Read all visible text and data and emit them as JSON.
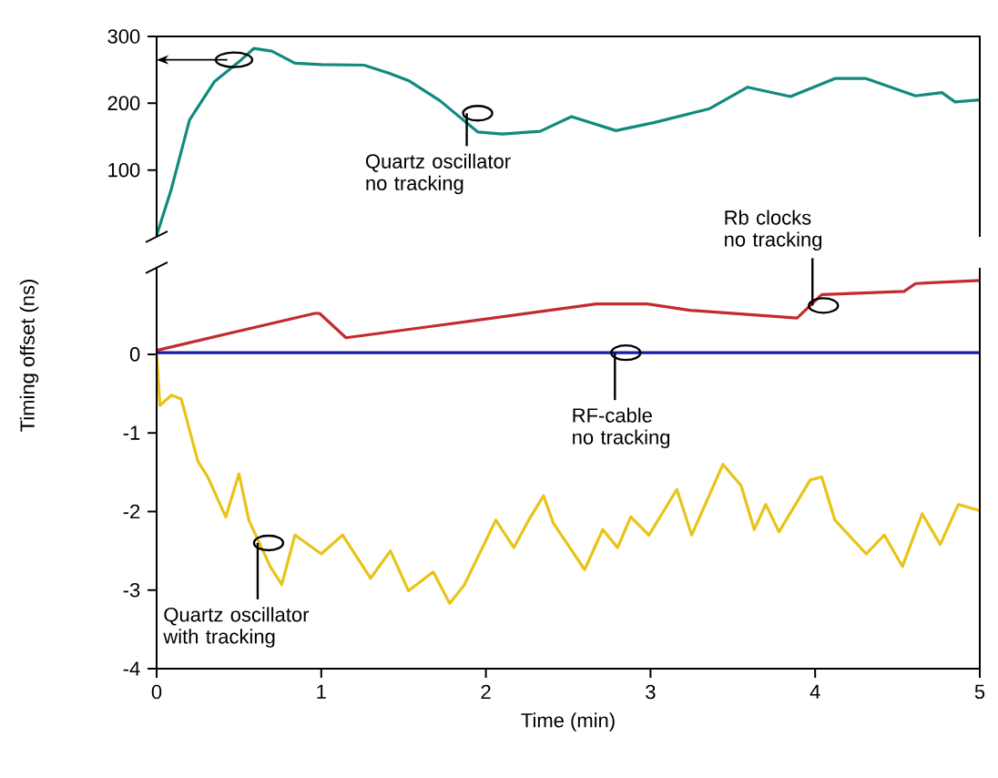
{
  "chart_data": [
    {
      "type": "line",
      "xlim": [
        0,
        5
      ],
      "ylim": [
        0,
        300
      ],
      "yticks": [
        100,
        200,
        300
      ],
      "tick_labels": "y",
      "series": [
        {
          "color": "#118a7e",
          "x": [
            0,
            0.09,
            0.2,
            0.35,
            0.5,
            0.59,
            0.7,
            0.84,
            1.0,
            1.26,
            1.41,
            1.53,
            1.72,
            1.95,
            2.1,
            2.33,
            2.52,
            2.79,
            3.02,
            3.36,
            3.59,
            3.85,
            4.12,
            4.31,
            4.61,
            4.77,
            4.85,
            5.0
          ],
          "values": [
            2,
            72,
            175,
            232,
            262,
            282,
            278,
            260,
            258,
            257,
            245,
            234,
            204,
            157,
            154,
            158,
            180,
            159,
            171,
            192,
            224,
            210,
            237,
            237,
            211,
            216,
            202,
            205
          ]
        }
      ],
      "annotations": [
        {
          "text": "Quartz oscillator no tracking",
          "x": 1.95,
          "y": 185
        }
      ]
    },
    {
      "type": "line",
      "xlim": [
        0,
        5
      ],
      "ylim": [
        -4,
        1.1
      ],
      "xticks": [
        0,
        1,
        2,
        3,
        4,
        5
      ],
      "yticks": [
        -4,
        -3,
        -2,
        -1,
        0
      ],
      "xlabel": "Time (min)",
      "ylabel": "Timing offset (ns)",
      "series": [
        {
          "color": "#c42a2e",
          "x": [
            0,
            0.96,
            0.99,
            1.15,
            1.72,
            2.67,
            2.98,
            3.24,
            3.89,
            4.04,
            4.54,
            4.61,
            5.0
          ],
          "values": [
            0.05,
            0.52,
            0.52,
            0.21,
            0.37,
            0.64,
            0.64,
            0.56,
            0.46,
            0.76,
            0.8,
            0.9,
            0.94
          ]
        },
        {
          "color": "#1a1aa8",
          "x": [
            0,
            0.5,
            1,
            1.5,
            2,
            2.5,
            3,
            3.5,
            4,
            4.5,
            5
          ],
          "values": [
            0.02,
            0.02,
            0.02,
            0.02,
            0.02,
            0.02,
            0.02,
            0.02,
            0.02,
            0.02,
            0.02
          ]
        },
        {
          "color": "#e8c417",
          "x": [
            0,
            0.02,
            0.09,
            0.15,
            0.25,
            0.31,
            0.42,
            0.5,
            0.56,
            0.69,
            0.76,
            0.84,
            1.0,
            1.13,
            1.3,
            1.42,
            1.53,
            1.68,
            1.78,
            1.87,
            2.06,
            2.17,
            2.26,
            2.35,
            2.41,
            2.6,
            2.71,
            2.8,
            2.88,
            2.99,
            3.16,
            3.25,
            3.44,
            3.55,
            3.63,
            3.7,
            3.78,
            3.97,
            4.04,
            4.12,
            4.31,
            4.42,
            4.53,
            4.65,
            4.76,
            4.87,
            5.0
          ],
          "values": [
            0,
            -0.65,
            -0.52,
            -0.57,
            -1.36,
            -1.56,
            -2.07,
            -1.52,
            -2.11,
            -2.7,
            -2.93,
            -2.3,
            -2.54,
            -2.3,
            -2.85,
            -2.5,
            -3.01,
            -2.77,
            -3.17,
            -2.93,
            -2.11,
            -2.46,
            -2.11,
            -1.8,
            -2.15,
            -2.74,
            -2.23,
            -2.46,
            -2.07,
            -2.3,
            -1.72,
            -2.3,
            -1.4,
            -1.67,
            -2.23,
            -1.91,
            -2.26,
            -1.6,
            -1.56,
            -2.11,
            -2.54,
            -2.3,
            -2.7,
            -2.03,
            -2.42,
            -1.91,
            -1.99
          ]
        }
      ],
      "annotations": [
        {
          "text": "Rb clocks no tracking",
          "x": 4.05,
          "y": 0.62
        },
        {
          "text": "RF-cable no tracking",
          "x": 2.85,
          "y": 0.02
        },
        {
          "text": "Quartz oscillator with tracking",
          "x": 0.68,
          "y": -2.4
        }
      ]
    }
  ]
}
